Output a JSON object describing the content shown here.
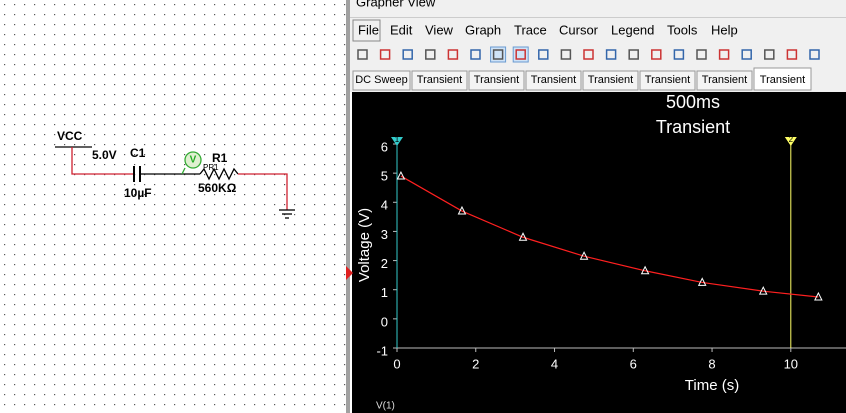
{
  "schematic": {
    "supply_label": "VCC",
    "supply_value": "5.0V",
    "capacitor_name": "C1",
    "capacitor_value": "10µF",
    "resistor_name": "R1",
    "resistor_value": "560KΩ",
    "probe_symbol": "V",
    "probe_name": "PR1"
  },
  "window": {
    "title": "Grapher View",
    "menu": [
      "File",
      "Edit",
      "View",
      "Graph",
      "Trace",
      "Cursor",
      "Legend",
      "Tools",
      "Help"
    ],
    "tabs": [
      "DC Sweep",
      "Transient",
      "Transient",
      "Transient",
      "Transient",
      "Transient",
      "Transient",
      "Transient"
    ],
    "active_tab": 7
  },
  "chart_data": {
    "type": "line",
    "title": "500ms",
    "subtitle": "Transient",
    "x_label": "Time (s)",
    "y_label": "Voltage (V)",
    "x": [
      0.1,
      1.65,
      3.2,
      4.75,
      6.3,
      7.75,
      9.3,
      10.7
    ],
    "series": [
      {
        "name": "V(1)",
        "color": "#ff2020",
        "values": [
          4.9,
          3.7,
          2.8,
          2.15,
          1.65,
          1.25,
          0.95,
          0.75
        ]
      }
    ],
    "xlim": [
      0,
      11.3
    ],
    "ylim": [
      -1,
      6
    ],
    "xticks": [
      0,
      2,
      4,
      6,
      8,
      10
    ],
    "yticks": [
      -1,
      0,
      1,
      2,
      3,
      4,
      5,
      6
    ],
    "cursors": [
      {
        "name": "1",
        "x": 0,
        "color": "#33cccc"
      },
      {
        "name": "2",
        "x": 10,
        "color": "#ffff66"
      }
    ]
  }
}
